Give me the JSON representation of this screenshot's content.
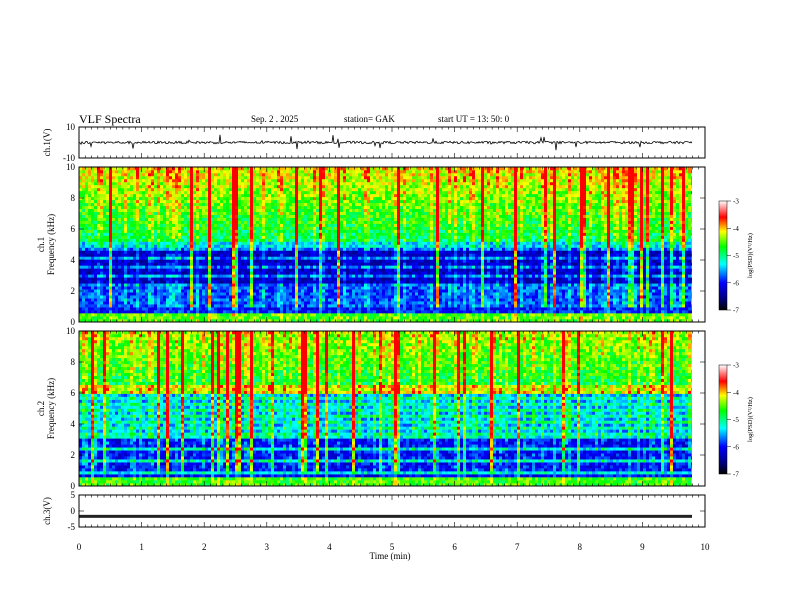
{
  "header": {
    "title": "VLF  Spectra",
    "date": "Sep. 2   . 2025",
    "station": "station= GAK",
    "start": "start  UT  =    13: 50: 0"
  },
  "chart_data": [
    {
      "type": "line",
      "name_panel": "ch1-waveform",
      "ylabel": "ch.1(V)",
      "ylim": [
        -10,
        10
      ],
      "y_ticks": [
        "10",
        "-10"
      ],
      "xlim": [
        0,
        10
      ]
    },
    {
      "type": "heatmap",
      "name_panel": "ch1-spectrogram",
      "ylabel": [
        "ch.1",
        "Frequency  (kHz)"
      ],
      "ylim": [
        0,
        10
      ],
      "y_ticks": [
        "0",
        "2",
        "4",
        "6",
        "8",
        "10"
      ],
      "xlim": [
        0,
        10
      ],
      "colorbar": {
        "label": "log(PSD)(V²/Hz)",
        "range": [
          -7,
          -3
        ],
        "ticks": [
          "-3",
          "-4",
          "-5",
          "-6",
          "-7"
        ]
      }
    },
    {
      "type": "heatmap",
      "name_panel": "ch2-spectrogram",
      "ylabel": [
        "ch.2",
        "Frequency  (kHz)"
      ],
      "ylim": [
        0,
        10
      ],
      "y_ticks": [
        "0",
        "2",
        "4",
        "6",
        "8",
        "10"
      ],
      "xlim": [
        0,
        10
      ],
      "colorbar": {
        "label": "log(PSD)(V²/Hz)",
        "range": [
          -7,
          -3
        ],
        "ticks": [
          "-3",
          "-4",
          "-5",
          "-6",
          "-7"
        ]
      }
    },
    {
      "type": "line",
      "name_panel": "ch3-waveform",
      "ylabel": "ch.3(V)",
      "ylim": [
        -5,
        5
      ],
      "y_ticks": [
        "5",
        "0",
        "-5"
      ],
      "xlim": [
        0,
        10
      ],
      "xlabel": "Time  (min)",
      "x_ticks": [
        "0",
        "1",
        "2",
        "3",
        "4",
        "5",
        "6",
        "7",
        "8",
        "9",
        "10"
      ]
    }
  ],
  "colors": {
    "dark": "#00007a",
    "blue": "#0000ff",
    "cyan": "#00ffff",
    "green": "#00ff00",
    "yellow": "#ffff00",
    "red": "#ff0000",
    "white": "#ffffff"
  }
}
